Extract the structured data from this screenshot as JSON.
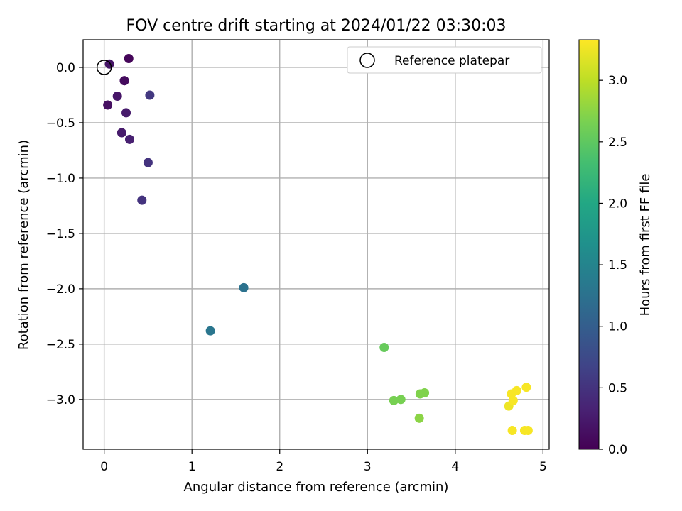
{
  "chart_data": {
    "type": "scatter",
    "title": "FOV centre drift starting at 2024/01/22 03:30:03",
    "xlabel": "Angular distance from reference (arcmin)",
    "ylabel": "Rotation from reference (arcmin)",
    "xlim": [
      -0.24,
      5.07
    ],
    "ylim": [
      -3.45,
      0.25
    ],
    "xticks": [
      0,
      1,
      2,
      3,
      4,
      5
    ],
    "xtick_labels": [
      "0",
      "1",
      "2",
      "3",
      "4",
      "5"
    ],
    "yticks": [
      0.0,
      -0.5,
      -1.0,
      -1.5,
      -2.0,
      -2.5,
      -3.0
    ],
    "ytick_labels": [
      "0.0",
      "−0.5",
      "−1.0",
      "−1.5",
      "−2.0",
      "−2.5",
      "−3.0"
    ],
    "grid": true,
    "legend": {
      "placement": "top-right",
      "label": "Reference platepar"
    },
    "reference": {
      "x": 0,
      "y": 0
    },
    "colorbar": {
      "label": "Hours from first FF file",
      "range": [
        0,
        3.33
      ],
      "ticks": [
        0.0,
        0.5,
        1.0,
        1.5,
        2.0,
        2.5,
        3.0
      ],
      "tick_labels": [
        "0.0",
        "0.5",
        "1.0",
        "1.5",
        "2.0",
        "2.5",
        "3.0"
      ],
      "colormap": "viridis"
    },
    "points": [
      {
        "x": 0.28,
        "y": 0.08,
        "hours": 0.05
      },
      {
        "x": 0.06,
        "y": 0.03,
        "hours": 0.2
      },
      {
        "x": 0.23,
        "y": -0.12,
        "hours": 0.0
      },
      {
        "x": 0.23,
        "y": -0.12,
        "hours": 0.1
      },
      {
        "x": 0.15,
        "y": -0.26,
        "hours": 0.2
      },
      {
        "x": 0.04,
        "y": -0.34,
        "hours": 0.15
      },
      {
        "x": 0.25,
        "y": -0.41,
        "hours": 0.25
      },
      {
        "x": 0.2,
        "y": -0.59,
        "hours": 0.25
      },
      {
        "x": 0.29,
        "y": -0.65,
        "hours": 0.3
      },
      {
        "x": 0.52,
        "y": -0.25,
        "hours": 0.55
      },
      {
        "x": 0.5,
        "y": -0.86,
        "hours": 0.5
      },
      {
        "x": 0.43,
        "y": -1.2,
        "hours": 0.5
      },
      {
        "x": 1.59,
        "y": -1.99,
        "hours": 1.25
      },
      {
        "x": 1.21,
        "y": -2.38,
        "hours": 1.3
      },
      {
        "x": 3.19,
        "y": -2.53,
        "hours": 2.55
      },
      {
        "x": 3.3,
        "y": -3.01,
        "hours": 2.65
      },
      {
        "x": 3.38,
        "y": -3.0,
        "hours": 2.65
      },
      {
        "x": 3.6,
        "y": -2.95,
        "hours": 2.7
      },
      {
        "x": 3.65,
        "y": -2.94,
        "hours": 2.7
      },
      {
        "x": 3.59,
        "y": -3.17,
        "hours": 2.75
      },
      {
        "x": 4.61,
        "y": -3.06,
        "hours": 3.25
      },
      {
        "x": 4.64,
        "y": -2.95,
        "hours": 3.3
      },
      {
        "x": 4.66,
        "y": -3.01,
        "hours": 3.3
      },
      {
        "x": 4.7,
        "y": -2.92,
        "hours": 3.3
      },
      {
        "x": 4.81,
        "y": -2.89,
        "hours": 3.3
      },
      {
        "x": 4.65,
        "y": -3.28,
        "hours": 3.3
      },
      {
        "x": 4.79,
        "y": -3.28,
        "hours": 3.3
      },
      {
        "x": 4.83,
        "y": -3.28,
        "hours": 3.3
      }
    ]
  }
}
